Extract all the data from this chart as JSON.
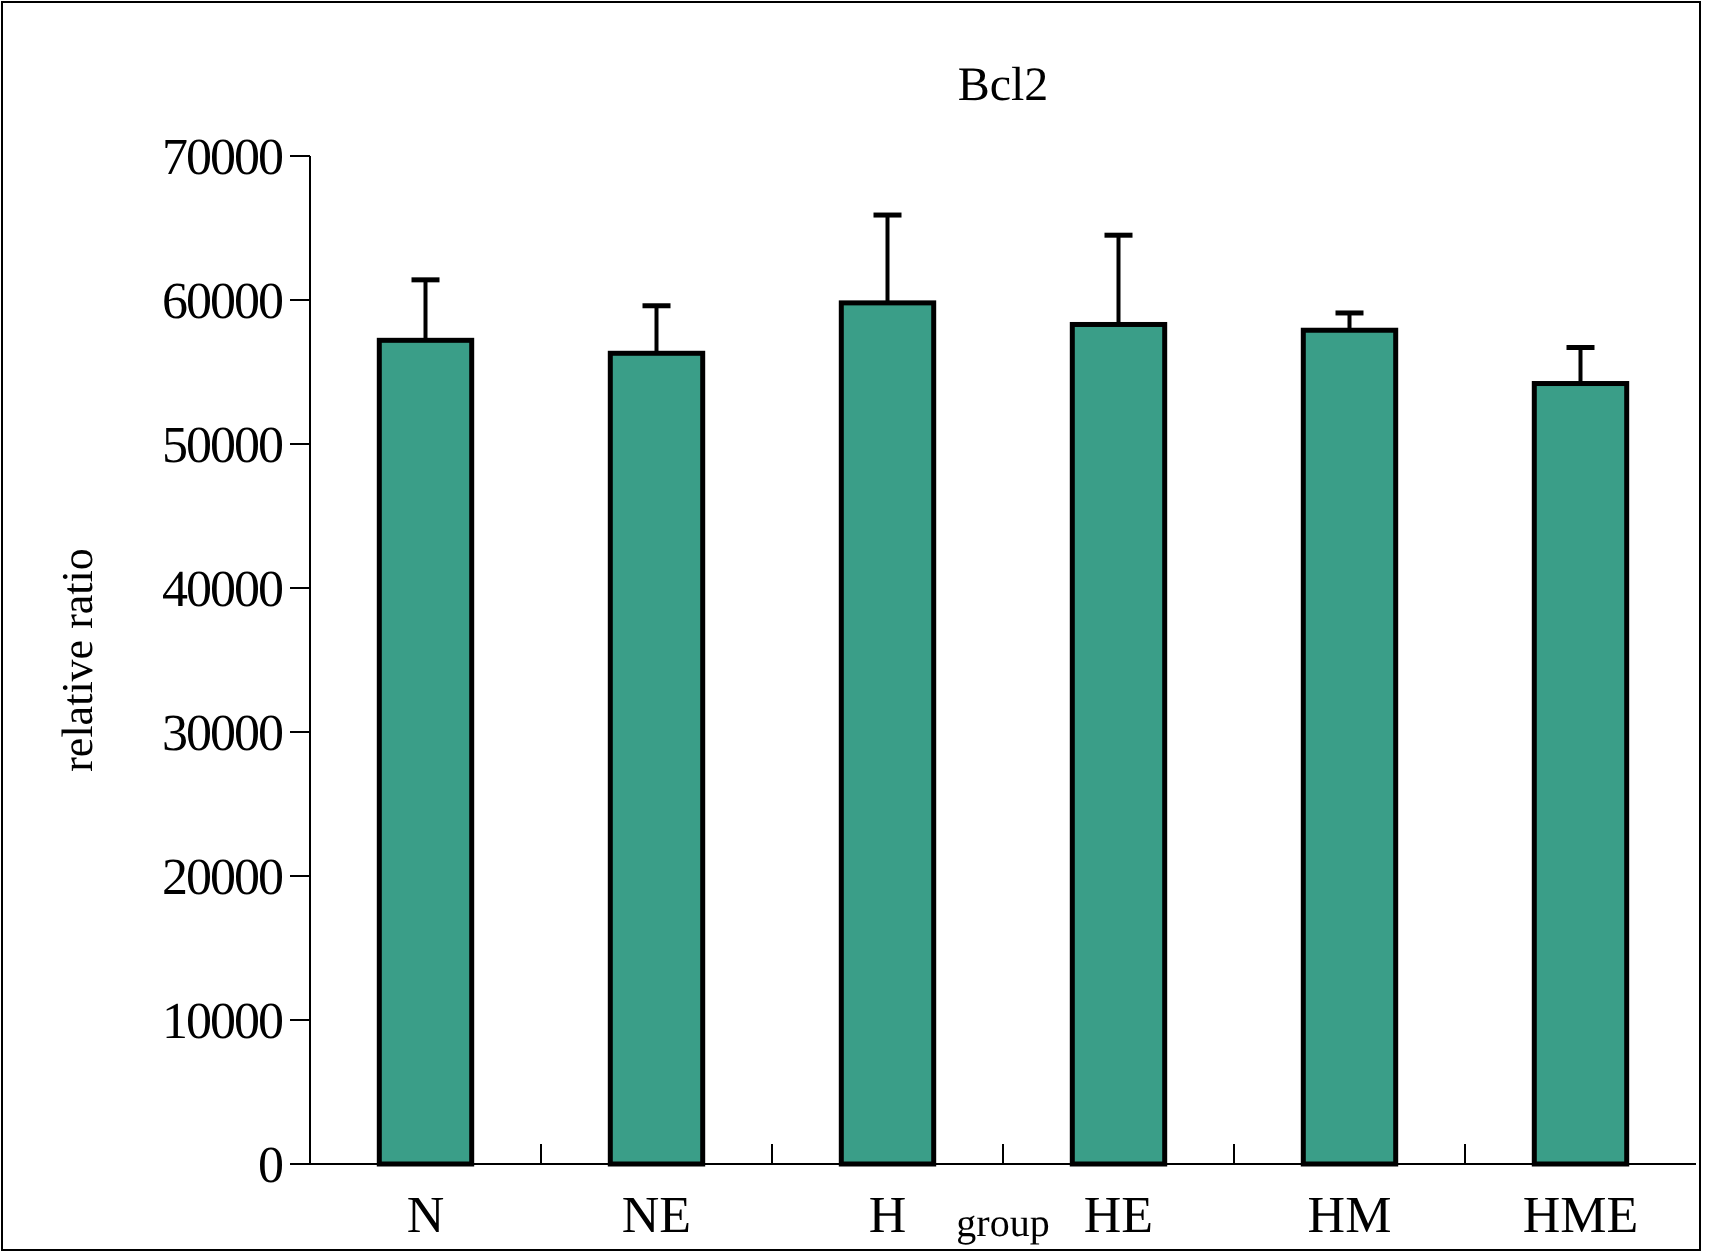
{
  "chart_data": {
    "type": "bar",
    "title": "Bcl2",
    "xlabel": "group",
    "ylabel": "relative ratio",
    "categories": [
      "N",
      "NE",
      "H",
      "HE",
      "HM",
      "HME"
    ],
    "values": [
      57200,
      56300,
      59800,
      58300,
      57900,
      54200
    ],
    "errors": [
      [
        57200,
        61400
      ],
      [
        56300,
        59600
      ],
      [
        59800,
        65900
      ],
      [
        58300,
        64500
      ],
      [
        57900,
        59100
      ],
      [
        54200,
        56700
      ]
    ],
    "color": "#3a9e88",
    "ylim": [
      0,
      70000
    ],
    "yticks": [
      0,
      10000,
      20000,
      30000,
      40000,
      50000,
      60000,
      70000
    ],
    "grid": false
  }
}
